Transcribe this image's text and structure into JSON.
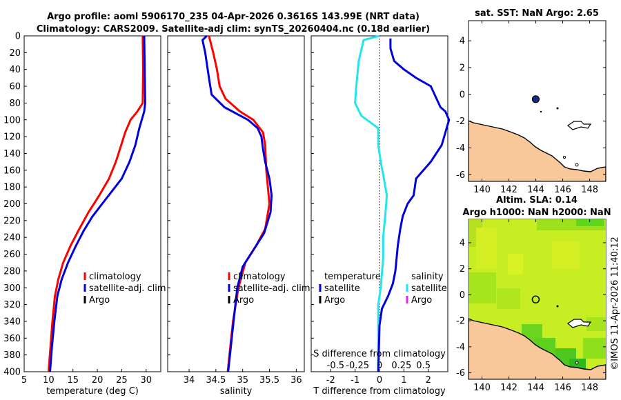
{
  "title": {
    "line1": "Argo profile: aoml 5906170_235 04-Apr-2026 0.3616S 143.99E (NRT data)",
    "line2": "Climatology: CARS2009. Satellite-adj clim: synTS_20260404.nc (0.18d earlier)"
  },
  "side_label": "©IMOS 11-Apr-2026 11:40:12",
  "depth_ticks": [
    0,
    20,
    40,
    60,
    80,
    100,
    120,
    140,
    160,
    180,
    200,
    220,
    240,
    260,
    280,
    300,
    320,
    340,
    360,
    380,
    400
  ],
  "colors": {
    "climatology": "#ff0000",
    "satellite": "#0000dd",
    "argo": "#000000",
    "temp_diff": "#22e6ee",
    "argo_sal": "#ee22ee",
    "land": "#f8c89a",
    "sla_a": "#c6ee22",
    "sla_b": "#9ee61c",
    "sla_c": "#3ec81e",
    "marker": "#1a2a78"
  },
  "chart_data": [
    {
      "id": "temperature",
      "type": "line",
      "xlabel": "temperature (deg C)",
      "ylabel": "",
      "xlim": [
        5,
        33
      ],
      "ylim": [
        400,
        0
      ],
      "xticks": [
        5,
        10,
        15,
        20,
        25,
        30
      ],
      "legend": [
        "climatology",
        "satellite-adj. clim",
        "Argo"
      ],
      "series": [
        {
          "name": "climatology",
          "color": "#ff0000",
          "points": [
            [
              29.3,
              0
            ],
            [
              29.4,
              40
            ],
            [
              29.3,
              80
            ],
            [
              28.2,
              90
            ],
            [
              26.8,
              100
            ],
            [
              25.7,
              115
            ],
            [
              24.9,
              130
            ],
            [
              23.8,
              150
            ],
            [
              22.4,
              170
            ],
            [
              20.4,
              190
            ],
            [
              18.2,
              210
            ],
            [
              16.3,
              230
            ],
            [
              14.5,
              250
            ],
            [
              13.0,
              270
            ],
            [
              12.0,
              290
            ],
            [
              11.3,
              310
            ],
            [
              10.8,
              340
            ],
            [
              10.4,
              370
            ],
            [
              10.0,
              400
            ]
          ]
        },
        {
          "name": "satellite-adj. clim",
          "color": "#0000dd",
          "points": [
            [
              29.6,
              0
            ],
            [
              29.7,
              40
            ],
            [
              29.8,
              80
            ],
            [
              29.6,
              90
            ],
            [
              28.6,
              110
            ],
            [
              27.8,
              130
            ],
            [
              26.6,
              150
            ],
            [
              25.0,
              170
            ],
            [
              23.0,
              185
            ],
            [
              21.0,
              200
            ],
            [
              19.0,
              215
            ],
            [
              17.2,
              232
            ],
            [
              15.6,
              250
            ],
            [
              14.0,
              270
            ],
            [
              12.7,
              290
            ],
            [
              11.8,
              310
            ],
            [
              11.2,
              340
            ],
            [
              10.7,
              370
            ],
            [
              10.3,
              400
            ]
          ]
        }
      ]
    },
    {
      "id": "salinity",
      "type": "line",
      "xlabel": "salinity",
      "ylabel": "",
      "xlim": [
        33.6,
        36.15
      ],
      "ylim": [
        400,
        0
      ],
      "xticks": [
        34,
        34.5,
        35,
        35.5,
        36
      ],
      "legend": [
        "climatology",
        "satellite-adj. clim",
        "Argo"
      ],
      "series": [
        {
          "name": "climatology",
          "color": "#ff0000",
          "points": [
            [
              34.37,
              0
            ],
            [
              34.45,
              20
            ],
            [
              34.52,
              40
            ],
            [
              34.57,
              60
            ],
            [
              34.68,
              75
            ],
            [
              34.95,
              90
            ],
            [
              35.2,
              100
            ],
            [
              35.38,
              115
            ],
            [
              35.42,
              130
            ],
            [
              35.44,
              160
            ],
            [
              35.47,
              180
            ],
            [
              35.5,
              200
            ],
            [
              35.42,
              230
            ],
            [
              35.25,
              250
            ],
            [
              35.05,
              270
            ],
            [
              34.92,
              300
            ],
            [
              34.82,
              340
            ],
            [
              34.77,
              370
            ],
            [
              34.72,
              400
            ]
          ]
        },
        {
          "name": "satellite-adj. clim",
          "color": "#0000dd",
          "points": [
            [
              34.33,
              0
            ],
            [
              34.25,
              5
            ],
            [
              34.3,
              20
            ],
            [
              34.37,
              50
            ],
            [
              34.42,
              70
            ],
            [
              34.66,
              85
            ],
            [
              35.1,
              100
            ],
            [
              35.28,
              110
            ],
            [
              35.35,
              120
            ],
            [
              35.38,
              135
            ],
            [
              35.42,
              150
            ],
            [
              35.5,
              170
            ],
            [
              35.54,
              190
            ],
            [
              35.52,
              210
            ],
            [
              35.4,
              235
            ],
            [
              35.2,
              255
            ],
            [
              35.0,
              275
            ],
            [
              34.9,
              300
            ],
            [
              34.83,
              340
            ],
            [
              34.78,
              370
            ],
            [
              34.73,
              400
            ]
          ]
        }
      ]
    },
    {
      "id": "difference",
      "type": "line",
      "xlabel": "T difference from climatology",
      "ylabel": "",
      "xlim": [
        -2.8,
        2.8
      ],
      "ylim": [
        400,
        0
      ],
      "xticks": [
        -2,
        -1,
        0,
        1,
        2
      ],
      "top_axis_label": "S difference from climatology",
      "top_ticks": [
        "-0.5",
        "-0.25",
        "0",
        "0.25",
        "0.5"
      ],
      "legend_temperature": [
        "temperature",
        "satellite",
        "Argo"
      ],
      "legend_salinity": [
        "salinity",
        "satellite",
        "Argo"
      ],
      "series": [
        {
          "name": "temperature satellite",
          "color": "#22e6ee",
          "points": [
            [
              0.0,
              0
            ],
            [
              -0.65,
              5
            ],
            [
              -0.85,
              30
            ],
            [
              -0.95,
              60
            ],
            [
              -1.0,
              80
            ],
            [
              -0.75,
              95
            ],
            [
              -0.05,
              110
            ],
            [
              -0.05,
              130
            ],
            [
              0.05,
              150
            ],
            [
              0.15,
              165
            ],
            [
              0.3,
              190
            ],
            [
              0.25,
              210
            ],
            [
              0.15,
              240
            ],
            [
              0.15,
              265
            ],
            [
              0.05,
              300
            ],
            [
              -0.05,
              320
            ],
            [
              -0.05,
              400
            ]
          ]
        },
        {
          "name": "salinity satellite",
          "color": "#0000dd",
          "points": [
            [
              0.45,
              3
            ],
            [
              0.45,
              15
            ],
            [
              0.6,
              30
            ],
            [
              1.0,
              40
            ],
            [
              1.5,
              50
            ],
            [
              2.1,
              60
            ],
            [
              2.5,
              85
            ],
            [
              2.7,
              90
            ],
            [
              2.85,
              100
            ],
            [
              2.7,
              115
            ],
            [
              2.55,
              130
            ],
            [
              2.1,
              150
            ],
            [
              1.5,
              170
            ],
            [
              1.4,
              190
            ],
            [
              1.15,
              200
            ],
            [
              0.95,
              215
            ],
            [
              0.85,
              230
            ],
            [
              0.75,
              250
            ],
            [
              0.65,
              280
            ],
            [
              0.55,
              295
            ],
            [
              0.35,
              310
            ],
            [
              0.1,
              325
            ],
            [
              0.0,
              345
            ],
            [
              -0.05,
              400
            ]
          ]
        }
      ]
    }
  ],
  "maps": {
    "sst": {
      "title": "sat. SST: NaN Argo: 2.65",
      "xticks": [
        140,
        142,
        144,
        146,
        148
      ],
      "yticks": [
        4,
        2,
        0,
        -2,
        -4,
        -6
      ],
      "xlim": [
        139,
        149.2
      ],
      "ylim": [
        -6.5,
        5.5
      ],
      "argo_position": [
        143.99,
        -0.3616
      ]
    },
    "sla": {
      "title1": "Altim. SLA: 0.14",
      "title2": "Argo h1000: NaN h2000: NaN",
      "xticks": [
        140,
        142,
        144,
        146,
        148
      ],
      "yticks": [
        4,
        2,
        0,
        -2,
        -4,
        -6
      ],
      "xlim": [
        139,
        149.2
      ],
      "ylim": [
        -6.5,
        5.8
      ],
      "argo_position": [
        143.99,
        -0.3616
      ]
    }
  }
}
